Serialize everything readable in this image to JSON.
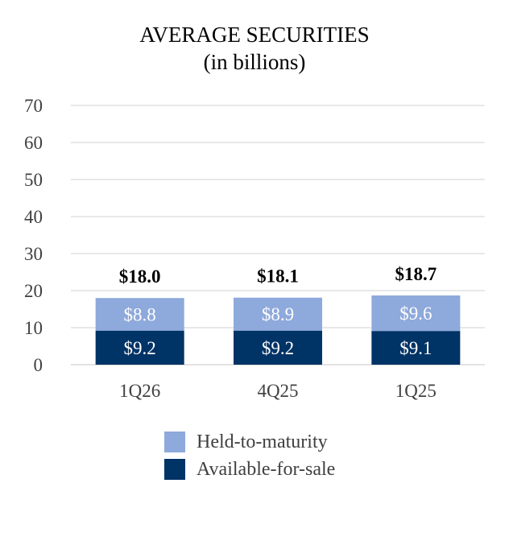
{
  "chart_data": {
    "type": "bar",
    "stacked": true,
    "title": "AVERAGE SECURITIES",
    "subtitle": "(in billions)",
    "categories": [
      "1Q26",
      "4Q25",
      "1Q25"
    ],
    "series": [
      {
        "name": "Available-for-sale",
        "values": [
          9.2,
          9.2,
          9.1
        ],
        "labels": [
          "$9.2",
          "$9.2",
          "$9.1"
        ],
        "color": "#003366"
      },
      {
        "name": "Held-to-maturity",
        "values": [
          8.8,
          8.9,
          9.6
        ],
        "labels": [
          "$8.8",
          "$8.9",
          "$9.6"
        ],
        "color": "#8EA9DB"
      }
    ],
    "totals": [
      "$18.0",
      "$18.1",
      "$18.7"
    ],
    "ylim": [
      0,
      70
    ],
    "yticks": [
      0,
      10,
      20,
      30,
      40,
      50,
      60,
      70
    ],
    "grid": true,
    "legend_position": "bottom"
  }
}
